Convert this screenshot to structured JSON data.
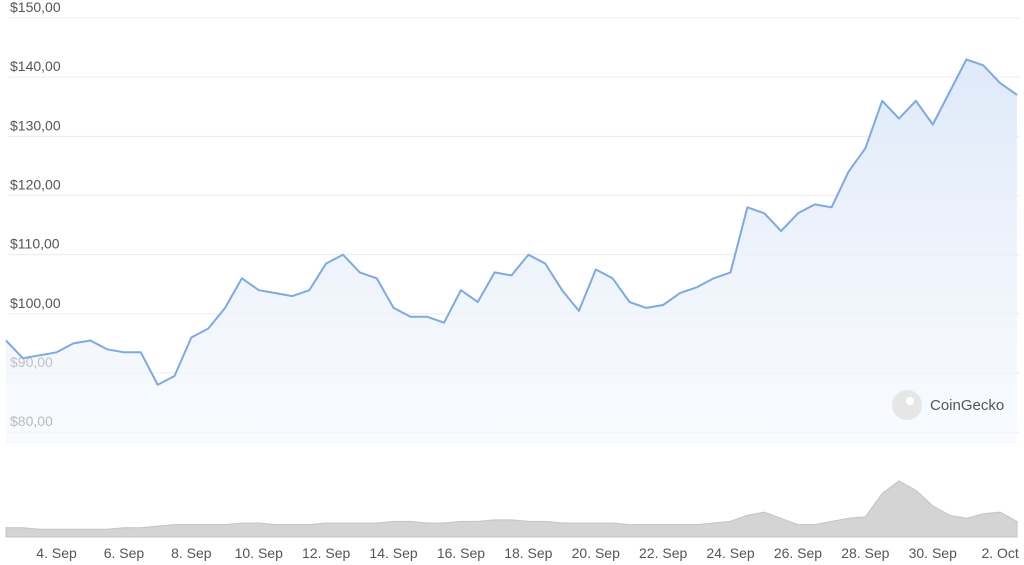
{
  "chart_data": {
    "type": "line",
    "watermark": "CoinGecko",
    "series": [
      {
        "name": null,
        "color": "#7ea9e3",
        "values": [
          95.5,
          92.5,
          93,
          93.5,
          95,
          95.5,
          94,
          93.5,
          93.5,
          88,
          89.5,
          96,
          97.5,
          101,
          106,
          104,
          103.5,
          103,
          104,
          108.5,
          110,
          107,
          106,
          101,
          99.5,
          99.5,
          98.5,
          104,
          102,
          107,
          106.5,
          110,
          108.5,
          104,
          100.5,
          107.5,
          106,
          102,
          101,
          101.5,
          103.5,
          104.5,
          106,
          107,
          118,
          117,
          114,
          117,
          118.5,
          118,
          124,
          128,
          136,
          133,
          136,
          132,
          137.5,
          143,
          142,
          139,
          137
        ]
      }
    ],
    "volume": {
      "color": "#d4d4d4",
      "values": [
        3,
        3,
        2.5,
        2.5,
        2.5,
        2.5,
        2.5,
        3,
        3,
        3.5,
        4,
        4,
        4,
        4,
        4.5,
        4.5,
        4,
        4,
        4,
        4.5,
        4.5,
        4.5,
        4.5,
        5,
        5,
        4.5,
        4.5,
        5,
        5,
        5.5,
        5.5,
        5,
        5,
        4.5,
        4.5,
        4.5,
        4.5,
        4,
        4,
        4,
        4,
        4,
        4.5,
        5,
        7,
        8,
        6,
        4,
        4,
        5,
        6,
        6.5,
        14,
        18,
        15,
        10,
        7,
        6,
        7.5,
        8,
        5
      ]
    },
    "xlim": [
      0,
      60
    ],
    "xticks": [
      {
        "value": 3,
        "label": "4. Sep"
      },
      {
        "value": 7,
        "label": "6. Sep"
      },
      {
        "value": 11,
        "label": "8. Sep"
      },
      {
        "value": 15,
        "label": "10. Sep"
      },
      {
        "value": 19,
        "label": "12. Sep"
      },
      {
        "value": 23,
        "label": "14. Sep"
      },
      {
        "value": 27,
        "label": "16. Sep"
      },
      {
        "value": 31,
        "label": "18. Sep"
      },
      {
        "value": 35,
        "label": "20. Sep"
      },
      {
        "value": 39,
        "label": "22. Sep"
      },
      {
        "value": 43,
        "label": "24. Sep"
      },
      {
        "value": 47,
        "label": "26. Sep"
      },
      {
        "value": 51,
        "label": "28. Sep"
      },
      {
        "value": 55,
        "label": "30. Sep"
      },
      {
        "value": 59,
        "label": "2. Oct"
      }
    ],
    "ylim": [
      78,
      150
    ],
    "yticks": [
      {
        "value": 80,
        "label": "$80,00"
      },
      {
        "value": 90,
        "label": "$90,00"
      },
      {
        "value": 100,
        "label": "$100,00"
      },
      {
        "value": 110,
        "label": "$110,00"
      },
      {
        "value": 120,
        "label": "$120,00"
      },
      {
        "value": 130,
        "label": "$130,00"
      },
      {
        "value": 140,
        "label": "$140,00"
      },
      {
        "value": 150,
        "label": "$150,00"
      }
    ],
    "grid": true
  }
}
